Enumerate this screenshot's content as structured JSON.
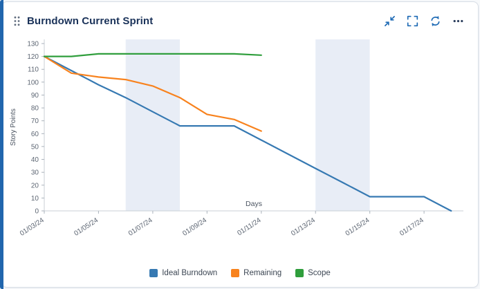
{
  "card": {
    "title": "Burndown Current Sprint",
    "accent_color": "#2166ad"
  },
  "icons": {
    "drag": "drag-handle-icon",
    "collapse": "collapse-icon",
    "fullscreen": "fullscreen-icon",
    "refresh": "refresh-icon",
    "more": "ellipsis-icon"
  },
  "chart_data": {
    "type": "line",
    "title": "",
    "xlabel": "Days",
    "ylabel": "Story Points",
    "ylim": [
      0,
      130
    ],
    "ytick_step": 10,
    "x_domain": [
      0,
      15.45
    ],
    "x_tick_positions": [
      0,
      2,
      4,
      6,
      8,
      10,
      12,
      14
    ],
    "x_tick_labels": [
      "01/03/24",
      "01/05/24",
      "01/07/24",
      "01/09/24",
      "01/11/24",
      "01/13/24",
      "01/15/24",
      "01/17/24"
    ],
    "grid": false,
    "legend_position": "bottom",
    "band_color": "#e8edf6",
    "weekend_bands": [
      [
        3,
        5
      ],
      [
        10,
        12
      ]
    ],
    "axis_color": "#c9cfd6",
    "tick_text_color": "#5d6673",
    "series": [
      {
        "name": "Ideal Burndown",
        "color": "#3679b2",
        "points": [
          [
            0,
            120
          ],
          [
            1,
            109
          ],
          [
            2,
            98
          ],
          [
            3,
            88
          ],
          [
            4,
            77
          ],
          [
            5,
            66
          ],
          [
            7,
            66
          ],
          [
            8,
            55
          ],
          [
            9,
            44
          ],
          [
            10,
            33
          ],
          [
            11,
            22
          ],
          [
            12,
            11
          ],
          [
            14,
            11
          ],
          [
            15,
            0
          ]
        ]
      },
      {
        "name": "Remaining",
        "color": "#f8821d",
        "points": [
          [
            0,
            120
          ],
          [
            1,
            107
          ],
          [
            2,
            104
          ],
          [
            3,
            102
          ],
          [
            4,
            97
          ],
          [
            5,
            88
          ],
          [
            6,
            75
          ],
          [
            7,
            71
          ],
          [
            8,
            62
          ]
        ]
      },
      {
        "name": "Scope",
        "color": "#2f9e3c",
        "points": [
          [
            0,
            120
          ],
          [
            1,
            120
          ],
          [
            2,
            122
          ],
          [
            5,
            122
          ],
          [
            7,
            122
          ],
          [
            8,
            121
          ]
        ]
      }
    ]
  }
}
